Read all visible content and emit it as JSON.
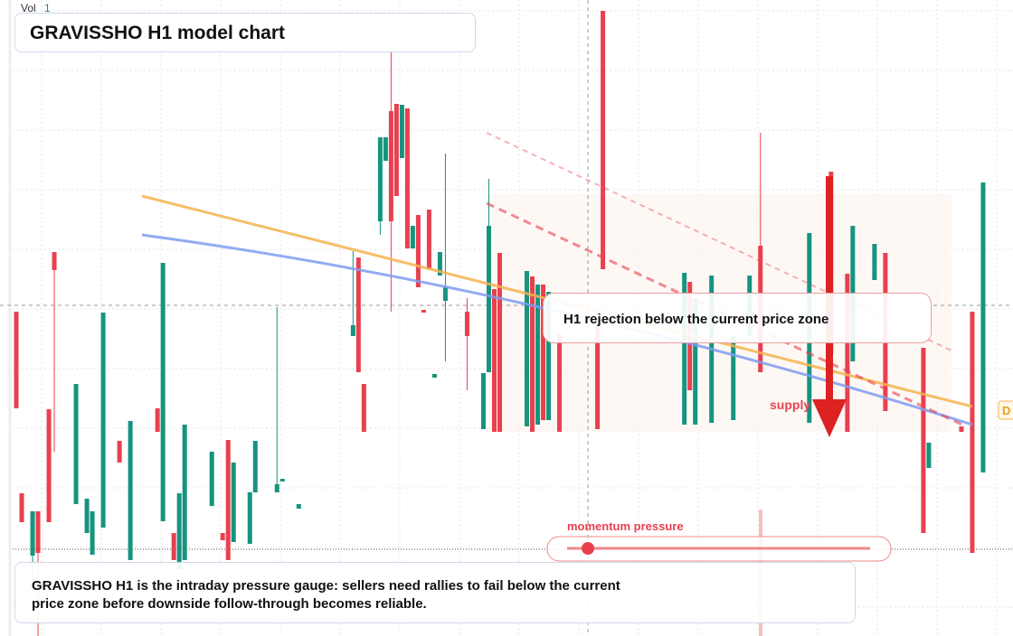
{
  "chart_data": {
    "type": "candlestick",
    "title": "GRAVISSHO H1 model chart",
    "volume_label": "Vol",
    "volume_value": 1,
    "callout": "H1 rejection below the current price zone",
    "zone_label": "supply",
    "edge_tag": "D",
    "slider_label": "momentum pressure",
    "caption": "GRAVISSHO H1 is the intraday pressure gauge: sellers need rallies to fail below the current price zone before downside follow-through becomes reliable.",
    "up_color": "#15947f",
    "down_color": "#e8404f",
    "xlim": [
      -2,
      184.5
    ],
    "ylim": [
      0,
      704
    ],
    "x": [
      1,
      2,
      4,
      5,
      7,
      8,
      12,
      14,
      15,
      17,
      20,
      22,
      27,
      28,
      30,
      31,
      32,
      37,
      39,
      40,
      41,
      44,
      45,
      49,
      50,
      53,
      63,
      64,
      65,
      68,
      69,
      70,
      71,
      72,
      73,
      74,
      75,
      76,
      77,
      78,
      79,
      80,
      84,
      87,
      88,
      89,
      90,
      95,
      96,
      97,
      98,
      99,
      101,
      108,
      109,
      124,
      125,
      126,
      129,
      133,
      136,
      138,
      147,
      151,
      154,
      155,
      159,
      161,
      168,
      169,
      175,
      177,
      179
    ],
    "open": [
      359,
      158,
      89,
      138,
      251,
      425,
      146,
      114,
      90,
      120,
      216,
      84,
      252,
      127,
      114,
      74,
      84,
      144,
      114,
      217,
      104,
      102,
      159,
      159,
      171,
      141,
      332,
      419,
      279,
      459,
      526,
      581,
      589,
      529,
      584,
      429,
      466,
      361,
      472,
      286,
      399,
      371,
      359,
      229,
      292,
      384,
      424,
      232,
      398,
      234,
      389,
      239,
      334,
      344,
      692,
      234,
      392,
      234,
      236,
      239,
      332,
      432,
      236,
      514,
      401,
      304,
      394,
      424,
      319,
      186,
      232,
      359,
      181
    ],
    "high": [
      359,
      158,
      138,
      138,
      251,
      425,
      279,
      152,
      138,
      358,
      216,
      238,
      252,
      413,
      114,
      158,
      234,
      204,
      114,
      217,
      192,
      159,
      216,
      364,
      174,
      146,
      426,
      419,
      279,
      552,
      552,
      646,
      589,
      588,
      584,
      454,
      466,
      361,
      472,
      290,
      425,
      534,
      374,
      291,
      506,
      384,
      424,
      404,
      398,
      389,
      389,
      381,
      334,
      344,
      692,
      402,
      392,
      374,
      399,
      332,
      399,
      557,
      446,
      514,
      401,
      454,
      434,
      424,
      319,
      214,
      232,
      359,
      502
    ],
    "low": [
      252,
      126,
      64,
      0,
      126,
      204,
      146,
      114,
      90,
      120,
      192,
      84,
      226,
      127,
      84,
      74,
      84,
      144,
      106,
      84,
      104,
      102,
      159,
      159,
      171,
      141,
      332,
      292,
      226,
      444,
      526,
      359,
      487,
      529,
      429,
      429,
      386,
      358,
      406,
      286,
      399,
      304,
      272,
      229,
      292,
      226,
      226,
      232,
      226,
      234,
      239,
      239,
      226,
      229,
      406,
      234,
      272,
      234,
      236,
      239,
      332,
      292,
      236,
      312,
      226,
      304,
      394,
      249,
      114,
      186,
      226,
      92,
      181
    ],
    "close": [
      252,
      126,
      138,
      92,
      126,
      405,
      279,
      152,
      138,
      358,
      192,
      238,
      226,
      413,
      84,
      158,
      234,
      204,
      106,
      84,
      192,
      159,
      216,
      168,
      174,
      146,
      344,
      292,
      226,
      552,
      552,
      459,
      487,
      588,
      429,
      454,
      386,
      358,
      406,
      290,
      425,
      386,
      332,
      291,
      454,
      226,
      226,
      404,
      226,
      389,
      239,
      381,
      226,
      229,
      406,
      402,
      272,
      374,
      399,
      332,
      399,
      292,
      446,
      312,
      226,
      454,
      434,
      249,
      114,
      214,
      226,
      92,
      502
    ]
  }
}
